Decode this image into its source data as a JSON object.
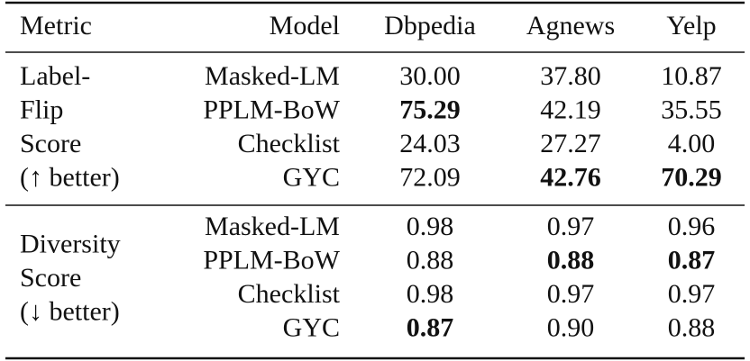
{
  "table": {
    "header": [
      "Metric",
      "Model",
      "Dbpedia",
      "Agnews",
      "Yelp"
    ],
    "groups": [
      {
        "metric": [
          "Label-",
          "Flip",
          "Score",
          "(↑ better)"
        ],
        "rows": [
          {
            "model": "Masked-LM",
            "values": [
              "30.00",
              "37.80",
              "10.87"
            ],
            "bold": [
              false,
              false,
              false
            ]
          },
          {
            "model": "PPLM-BoW",
            "values": [
              "75.29",
              "42.19",
              "35.55"
            ],
            "bold": [
              true,
              false,
              false
            ]
          },
          {
            "model": "Checklist",
            "values": [
              "24.03",
              "27.27",
              "4.00"
            ],
            "bold": [
              false,
              false,
              false
            ]
          },
          {
            "model": "GYC",
            "values": [
              "72.09",
              "42.76",
              "70.29"
            ],
            "bold": [
              false,
              true,
              true
            ]
          }
        ]
      },
      {
        "metric": [
          "Diversity",
          "Score",
          "(↓ better)"
        ],
        "rows": [
          {
            "model": "Masked-LM",
            "values": [
              "0.98",
              "0.97",
              "0.96"
            ],
            "bold": [
              false,
              false,
              false
            ]
          },
          {
            "model": "PPLM-BoW",
            "values": [
              "0.88",
              "0.88",
              "0.87"
            ],
            "bold": [
              false,
              true,
              true
            ]
          },
          {
            "model": "Checklist",
            "values": [
              "0.98",
              "0.97",
              "0.97"
            ],
            "bold": [
              false,
              false,
              false
            ]
          },
          {
            "model": "GYC",
            "values": [
              "0.87",
              "0.90",
              "0.88"
            ],
            "bold": [
              true,
              false,
              false
            ]
          }
        ]
      }
    ]
  }
}
